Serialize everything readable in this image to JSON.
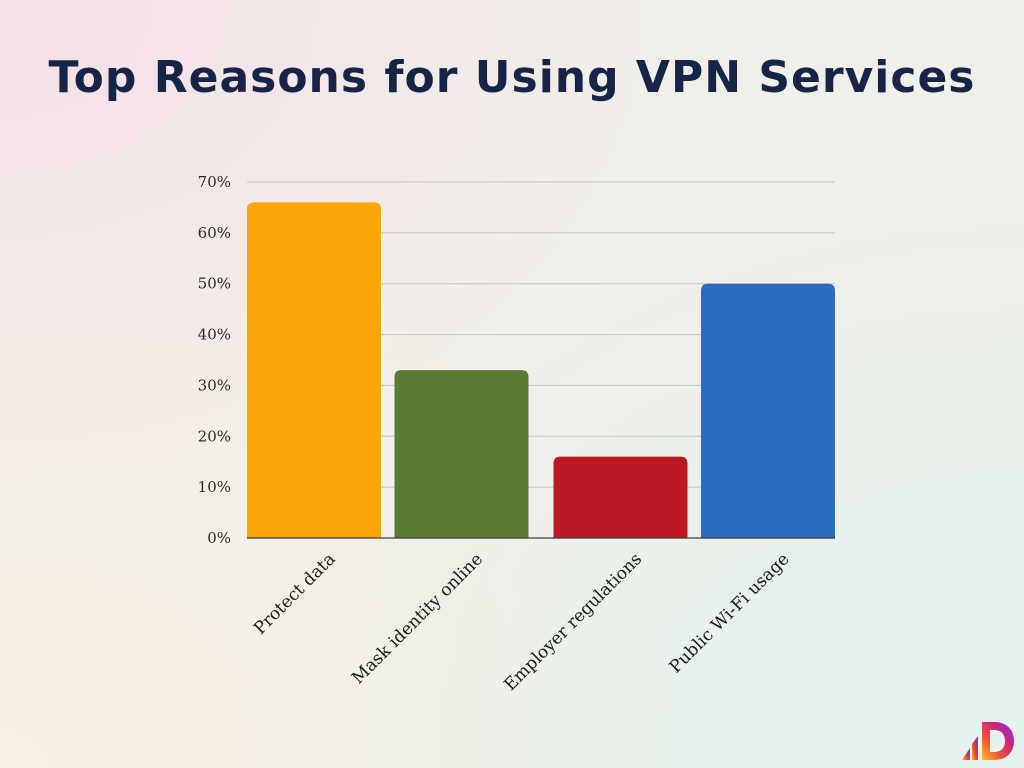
{
  "chart_data": {
    "type": "bar",
    "title": "Top Reasons for Using VPN Services",
    "categories": [
      "Protect data",
      "Mask identity online",
      "Employer regulations",
      "Public Wi-Fi usage"
    ],
    "values": [
      66,
      33,
      16,
      50
    ],
    "colors": [
      "#f9a606",
      "#5a7a35",
      "#bb1a24",
      "#2b6cc3"
    ],
    "ylim": [
      0,
      70
    ],
    "yticks": [
      "0%",
      "10%",
      "20%",
      "30%",
      "40%",
      "50%",
      "60%",
      "70%"
    ],
    "ytick_values": [
      0,
      10,
      20,
      30,
      40,
      50,
      60,
      70
    ],
    "grid": true,
    "xlabel": "",
    "ylabel": ""
  },
  "brand": {
    "logo_icon": "d-logo-icon",
    "logo_colors": [
      "#f7c12b",
      "#ef4e3a",
      "#c8277a",
      "#7b2ff7"
    ]
  }
}
